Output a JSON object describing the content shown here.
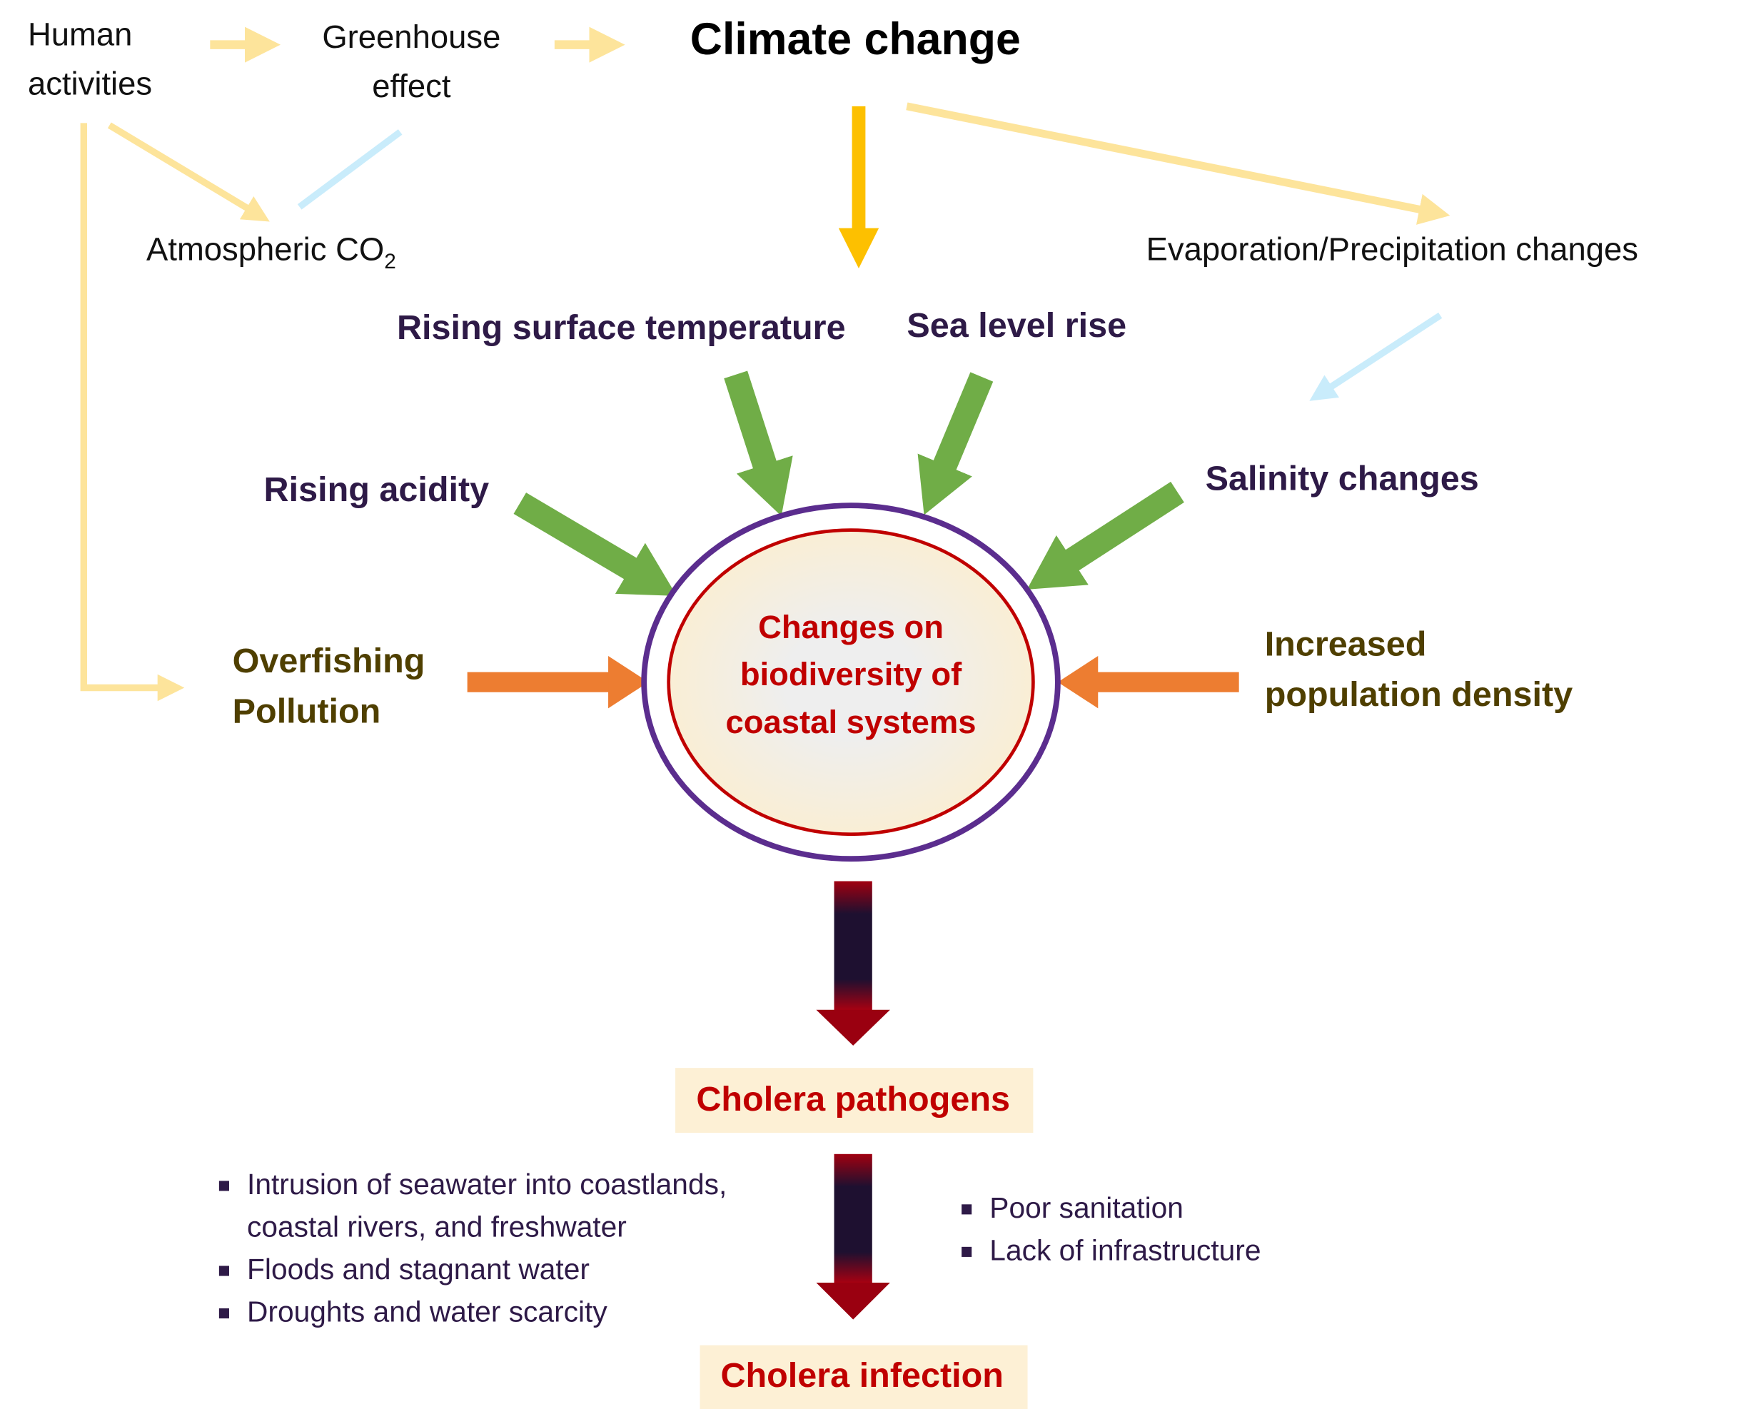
{
  "nodes": {
    "human_activities": [
      "Human",
      "activities"
    ],
    "greenhouse_effect": [
      "Greenhouse",
      "effect"
    ],
    "climate_change": "Climate change",
    "atmospheric_co2": {
      "text": "Atmospheric CO",
      "subscript": "2"
    },
    "evaporation_precipitation": "Evaporation/Precipitation changes",
    "rising_temperature": "Rising surface temperature",
    "sea_level_rise": "Sea level rise",
    "rising_acidity": "Rising acidity",
    "salinity_changes": "Salinity changes",
    "overfishing_pollution": [
      "Overfishing",
      "Pollution"
    ],
    "population_density": [
      "Increased",
      "population density"
    ],
    "center": [
      "Changes on",
      "biodiversity of",
      "coastal systems"
    ],
    "cholera_pathogens": "Cholera pathogens",
    "cholera_infection": "Cholera infection"
  },
  "left_factors": [
    [
      "Intrusion of seawater into coastlands,",
      "coastal rivers, and freshwater"
    ],
    [
      "Floods and stagnant water"
    ],
    [
      "Droughts and water scarcity"
    ]
  ],
  "right_factors": [
    [
      "Poor sanitation"
    ],
    [
      "Lack of infrastructure"
    ]
  ]
}
